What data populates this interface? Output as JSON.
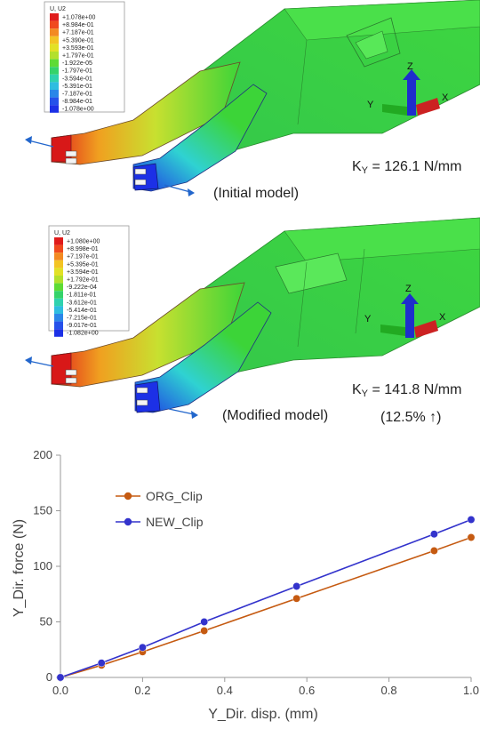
{
  "top_panel": {
    "colorbar": {
      "title": "U, U2",
      "labels": [
        "+1.078e+00",
        "+8.984e-01",
        "+7.187e-01",
        "+5.390e-01",
        "+3.593e-01",
        "+1.797e-01",
        "-1.922e-05",
        "-1.797e-01",
        "-3.594e-01",
        "-5.391e-01",
        "-7.187e-01",
        "-8.984e-01",
        "-1.078e+00"
      ]
    },
    "stiffness_label": "K",
    "stiffness_sub": "Y",
    "stiffness_value": " = 126.1 N/mm",
    "model_label": "(Initial model)",
    "axes": {
      "z": "Z",
      "y": "Y",
      "x": "X"
    }
  },
  "mid_panel": {
    "colorbar": {
      "title": "U, U2",
      "labels": [
        "+1.080e+00",
        "+8.998e-01",
        "+7.197e-01",
        "+5.395e-01",
        "+3.594e-01",
        "+1.792e-01",
        "-9.222e-04",
        "-1.811e-01",
        "-3.612e-01",
        "-5.414e-01",
        "-7.215e-01",
        "-9.017e-01",
        "-1.082e+00"
      ]
    },
    "stiffness_label": "K",
    "stiffness_sub": "Y",
    "stiffness_value": " = 141.8 N/mm",
    "improvement": "(12.5% ↑)",
    "model_label": "(Modified model)",
    "axes": {
      "z": "Z",
      "y": "Y",
      "x": "X"
    }
  },
  "colors": {
    "org": "#C55A11",
    "new": "#3333CC",
    "red": "#E0201B",
    "orange": "#F09A22",
    "yellow": "#D7E225",
    "green": "#39D436",
    "cyan": "#2FD2D2",
    "blue": "#1C30E6"
  },
  "chart_data": {
    "type": "line",
    "xlabel": "Y_Dir. disp. (mm)",
    "ylabel": "Y_Dir. force (N)",
    "xlim": [
      0,
      1.0
    ],
    "ylim": [
      0,
      200
    ],
    "xticks": [
      "0.0",
      "0.2",
      "0.4",
      "0.6",
      "0.8",
      "1.0"
    ],
    "yticks": [
      "0",
      "50",
      "100",
      "150",
      "200"
    ],
    "grid": false,
    "legend_position": "top-left",
    "series": [
      {
        "name": "ORG_Clip",
        "color": "#C55A11",
        "x": [
          0,
          0.1,
          0.2,
          0.35,
          0.575,
          0.91,
          1.0
        ],
        "y": [
          0,
          11,
          23,
          42,
          71,
          114,
          126
        ]
      },
      {
        "name": "NEW_Clip",
        "color": "#3333CC",
        "x": [
          0,
          0.1,
          0.2,
          0.35,
          0.575,
          0.91,
          1.0
        ],
        "y": [
          0,
          13,
          27,
          50,
          82,
          129,
          142
        ]
      }
    ]
  }
}
